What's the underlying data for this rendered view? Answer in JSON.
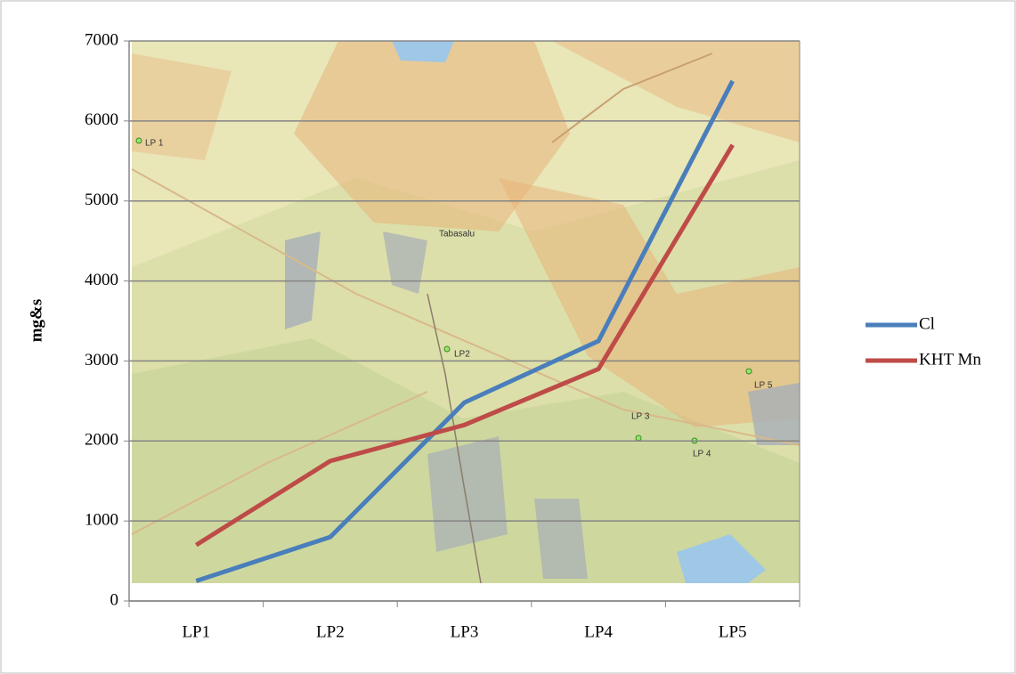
{
  "chart_data": {
    "type": "line",
    "y_label": "mg&s",
    "categories": [
      "LP1",
      "LP2",
      "LP3",
      "LP4",
      "LP5"
    ],
    "series": [
      {
        "name": "Cl",
        "color": "#4a7ebb",
        "values": [
          250,
          800,
          2480,
          3250,
          6500
        ]
      },
      {
        "name": "KHT Mn",
        "color": "#be4b48",
        "values": [
          700,
          1750,
          2200,
          2900,
          5700
        ]
      }
    ],
    "ylim": [
      0,
      7000
    ],
    "yticks": [
      0,
      1000,
      2000,
      3000,
      4000,
      5000,
      6000,
      7000
    ],
    "grid": true,
    "legend": "right",
    "annotations": [
      "LP 1",
      "LP2",
      "LP 3",
      "LP 4",
      "LP 5",
      "Tabasalu"
    ]
  }
}
